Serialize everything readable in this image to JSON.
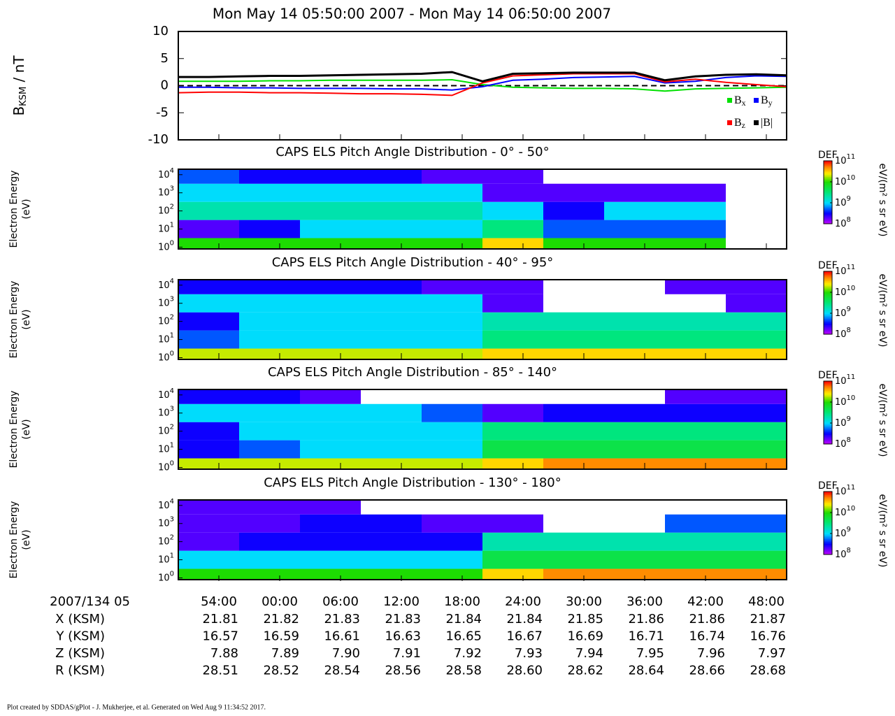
{
  "title": "Mon May 14 05:50:00 2007 - Mon May 14 06:50:00 2007",
  "chart_data": [
    {
      "type": "line",
      "ylabel": {
        "base": "B",
        "sub": "KSM",
        "unit": " / nT"
      },
      "x": [
        "05:50",
        "05:53",
        "05:56",
        "05:59",
        "06:02",
        "06:05",
        "06:08",
        "06:11",
        "06:14",
        "06:17",
        "06:20",
        "06:23",
        "06:26",
        "06:29",
        "06:32",
        "06:35",
        "06:38",
        "06:41",
        "06:44",
        "06:47",
        "06:50"
      ],
      "xlim": [
        "05:50",
        "06:50"
      ],
      "ylim": [
        -10,
        10
      ],
      "yticks": [
        -10,
        -5,
        0,
        5,
        10
      ],
      "series": [
        {
          "name": "B",
          "sub": "x",
          "color": "#00e000",
          "values": [
            0.8,
            0.8,
            0.8,
            0.9,
            0.9,
            1,
            1,
            1,
            1,
            1.1,
            0.2,
            -0.3,
            -0.4,
            -0.5,
            -0.5,
            -0.6,
            -1,
            -0.6,
            -0.5,
            -0.4,
            -0.3
          ]
        },
        {
          "name": "B",
          "sub": "y",
          "color": "#0000ff",
          "values": [
            -0.3,
            -0.3,
            -0.4,
            -0.4,
            -0.5,
            -0.5,
            -0.5,
            -0.6,
            -0.6,
            -0.8,
            -0.2,
            1,
            1.2,
            1.5,
            1.6,
            1.7,
            0.5,
            0.8,
            1.5,
            1.8,
            1.7
          ]
        },
        {
          "name": "B",
          "sub": "z",
          "color": "#ff0000",
          "values": [
            -1.3,
            -1.2,
            -1.2,
            -1.3,
            -1.3,
            -1.4,
            -1.5,
            -1.5,
            -1.6,
            -1.8,
            0.5,
            1.8,
            2,
            2.2,
            2.2,
            2.2,
            0.7,
            1.2,
            0.6,
            0.2,
            -0.2
          ]
        },
        {
          "name": "|B|",
          "sub": "",
          "color": "#000000",
          "values": [
            1.6,
            1.6,
            1.7,
            1.8,
            1.8,
            1.9,
            2,
            2.1,
            2.2,
            2.5,
            0.8,
            2.2,
            2.3,
            2.4,
            2.4,
            2.4,
            1,
            1.7,
            2,
            2.1,
            1.9
          ]
        }
      ]
    },
    {
      "type": "heatmap",
      "title": "CAPS ELS Pitch Angle Distribution - 0° - 50°",
      "ylabel": [
        "Electron Energy",
        "(eV)"
      ],
      "colorbar_title": "DEF",
      "colorbar_label": "eV/(m² s sr eV)",
      "x": [
        "05:53",
        "05:59",
        "06:05",
        "06:11",
        "06:17",
        "06:23",
        "06:29",
        "06:35",
        "06:41",
        "06:47"
      ],
      "xlim": [
        "05:50",
        "06:50"
      ],
      "y": [
        1,
        10,
        100,
        1000,
        10000
      ],
      "ylim": [
        0.8,
        20000
      ],
      "yticks": [
        {
          "value": 1,
          "label": "10",
          "exp": "0"
        },
        {
          "value": 10,
          "label": "10",
          "exp": "1"
        },
        {
          "value": 100,
          "label": "10",
          "exp": "2"
        },
        {
          "value": 1000,
          "label": "10",
          "exp": "3"
        },
        {
          "value": 10000,
          "label": "10",
          "exp": "4"
        }
      ],
      "zlim": [
        100000000,
        100000000000
      ],
      "zticks": [
        {
          "value": 100000000,
          "label": "10",
          "exp": "8"
        },
        {
          "value": 1000000000,
          "label": "10",
          "exp": "9"
        },
        {
          "value": 10000000000,
          "label": "10",
          "exp": "10"
        },
        {
          "value": 100000000000,
          "label": "10",
          "exp": "11"
        }
      ],
      "z": [
        [
          10000000000.0,
          10000000000.0,
          10000000000.0,
          10000000000.0,
          10000000000.0,
          30000000000.0,
          10000000000.0,
          10000000000.0,
          10000000000.0,
          null
        ],
        [
          200000000.0,
          300000000.0,
          1000000000.0,
          1000000000.0,
          1000000000.0,
          3000000000.0,
          500000000.0,
          500000000.0,
          500000000.0,
          null
        ],
        [
          2000000000.0,
          2000000000.0,
          2000000000.0,
          2000000000.0,
          2000000000.0,
          1000000000.0,
          300000000.0,
          1000000000.0,
          1000000000.0,
          null
        ],
        [
          1000000000.0,
          1000000000.0,
          1000000000.0,
          1000000000.0,
          1000000000.0,
          200000000.0,
          200000000.0,
          200000000.0,
          200000000.0,
          null
        ],
        [
          500000000.0,
          300000000.0,
          300000000.0,
          300000000.0,
          200000000.0,
          200000000.0,
          null,
          null,
          null,
          null
        ]
      ]
    },
    {
      "type": "heatmap",
      "title": "CAPS ELS Pitch Angle Distribution - 40° - 95°",
      "ylabel": [
        "Electron Energy",
        "(eV)"
      ],
      "colorbar_title": "DEF",
      "colorbar_label": "eV/(m² s sr eV)",
      "x": [
        "05:53",
        "05:59",
        "06:05",
        "06:11",
        "06:17",
        "06:23",
        "06:29",
        "06:35",
        "06:41",
        "06:47"
      ],
      "xlim": [
        "05:50",
        "06:50"
      ],
      "y": [
        1,
        10,
        100,
        1000,
        10000
      ],
      "ylim": [
        0.8,
        20000
      ],
      "yticks": [
        {
          "value": 1,
          "label": "10",
          "exp": "0"
        },
        {
          "value": 10,
          "label": "10",
          "exp": "1"
        },
        {
          "value": 100,
          "label": "10",
          "exp": "2"
        },
        {
          "value": 1000,
          "label": "10",
          "exp": "3"
        },
        {
          "value": 10000,
          "label": "10",
          "exp": "4"
        }
      ],
      "zlim": [
        100000000,
        100000000000
      ],
      "zticks": [
        {
          "value": 100000000,
          "label": "10",
          "exp": "8"
        },
        {
          "value": 1000000000,
          "label": "10",
          "exp": "9"
        },
        {
          "value": 10000000000,
          "label": "10",
          "exp": "10"
        },
        {
          "value": 100000000000,
          "label": "10",
          "exp": "11"
        }
      ],
      "z": [
        [
          20000000000.0,
          20000000000.0,
          20000000000.0,
          20000000000.0,
          20000000000.0,
          30000000000.0,
          30000000000.0,
          30000000000.0,
          30000000000.0,
          30000000000.0
        ],
        [
          500000000.0,
          1000000000.0,
          1000000000.0,
          1000000000.0,
          1000000000.0,
          3000000000.0,
          3000000000.0,
          3000000000.0,
          3000000000.0,
          3000000000.0
        ],
        [
          300000000.0,
          1000000000.0,
          1000000000.0,
          1000000000.0,
          1000000000.0,
          2000000000.0,
          2000000000.0,
          2000000000.0,
          2000000000.0,
          2000000000.0
        ],
        [
          1000000000.0,
          1000000000.0,
          1000000000.0,
          1000000000.0,
          1000000000.0,
          200000000.0,
          null,
          null,
          null,
          200000000.0
        ],
        [
          300000000.0,
          300000000.0,
          300000000.0,
          300000000.0,
          200000000.0,
          200000000.0,
          null,
          null,
          200000000.0,
          200000000.0
        ]
      ]
    },
    {
      "type": "heatmap",
      "title": "CAPS ELS Pitch Angle Distribution - 85° - 140°",
      "ylabel": [
        "Electron Energy",
        "(eV)"
      ],
      "colorbar_title": "DEF",
      "colorbar_label": "eV/(m² s sr eV)",
      "x": [
        "05:53",
        "05:59",
        "06:05",
        "06:11",
        "06:17",
        "06:23",
        "06:29",
        "06:35",
        "06:41",
        "06:47"
      ],
      "xlim": [
        "05:50",
        "06:50"
      ],
      "y": [
        1,
        10,
        100,
        1000,
        10000
      ],
      "ylim": [
        0.8,
        20000
      ],
      "yticks": [
        {
          "value": 1,
          "label": "10",
          "exp": "0"
        },
        {
          "value": 10,
          "label": "10",
          "exp": "1"
        },
        {
          "value": 100,
          "label": "10",
          "exp": "2"
        },
        {
          "value": 1000,
          "label": "10",
          "exp": "3"
        },
        {
          "value": 10000,
          "label": "10",
          "exp": "4"
        }
      ],
      "zlim": [
        100000000,
        100000000000
      ],
      "zticks": [
        {
          "value": 100000000,
          "label": "10",
          "exp": "8"
        },
        {
          "value": 1000000000,
          "label": "10",
          "exp": "9"
        },
        {
          "value": 10000000000,
          "label": "10",
          "exp": "10"
        },
        {
          "value": 100000000000,
          "label": "10",
          "exp": "11"
        }
      ],
      "z": [
        [
          20000000000.0,
          20000000000.0,
          20000000000.0,
          20000000000.0,
          20000000000.0,
          30000000000.0,
          50000000000.0,
          50000000000.0,
          50000000000.0,
          50000000000.0
        ],
        [
          300000000.0,
          500000000.0,
          1000000000.0,
          1000000000.0,
          1000000000.0,
          5000000000.0,
          5000000000.0,
          5000000000.0,
          5000000000.0,
          5000000000.0
        ],
        [
          300000000.0,
          1000000000.0,
          1000000000.0,
          1000000000.0,
          1000000000.0,
          3000000000.0,
          3000000000.0,
          3000000000.0,
          3000000000.0,
          3000000000.0
        ],
        [
          1000000000.0,
          1000000000.0,
          1000000000.0,
          1000000000.0,
          500000000.0,
          200000000.0,
          300000000.0,
          300000000.0,
          300000000.0,
          300000000.0
        ],
        [
          300000000.0,
          300000000.0,
          200000000.0,
          null,
          null,
          null,
          null,
          null,
          200000000.0,
          200000000.0
        ]
      ]
    },
    {
      "type": "heatmap",
      "title": "CAPS ELS Pitch Angle Distribution - 130° - 180°",
      "ylabel": [
        "Electron Energy",
        "(eV)"
      ],
      "colorbar_title": "DEF",
      "colorbar_label": "eV/(m² s sr eV)",
      "x": [
        "05:53",
        "05:59",
        "06:05",
        "06:11",
        "06:17",
        "06:23",
        "06:29",
        "06:35",
        "06:41",
        "06:47"
      ],
      "xlim": [
        "05:50",
        "06:50"
      ],
      "y": [
        1,
        10,
        100,
        1000,
        10000
      ],
      "ylim": [
        0.8,
        20000
      ],
      "yticks": [
        {
          "value": 1,
          "label": "10",
          "exp": "0"
        },
        {
          "value": 10,
          "label": "10",
          "exp": "1"
        },
        {
          "value": 100,
          "label": "10",
          "exp": "2"
        },
        {
          "value": 1000,
          "label": "10",
          "exp": "3"
        },
        {
          "value": 10000,
          "label": "10",
          "exp": "4"
        }
      ],
      "zlim": [
        100000000,
        100000000000
      ],
      "zticks": [
        {
          "value": 100000000,
          "label": "10",
          "exp": "8"
        },
        {
          "value": 1000000000,
          "label": "10",
          "exp": "9"
        },
        {
          "value": 10000000000,
          "label": "10",
          "exp": "10"
        },
        {
          "value": 100000000000,
          "label": "10",
          "exp": "11"
        }
      ],
      "z": [
        [
          10000000000.0,
          10000000000.0,
          10000000000.0,
          10000000000.0,
          10000000000.0,
          30000000000.0,
          50000000000.0,
          50000000000.0,
          50000000000.0,
          50000000000.0
        ],
        [
          1000000000.0,
          1000000000.0,
          1000000000.0,
          1000000000.0,
          1000000000.0,
          5000000000.0,
          5000000000.0,
          5000000000.0,
          5000000000.0,
          5000000000.0
        ],
        [
          200000000.0,
          300000000.0,
          300000000.0,
          300000000.0,
          300000000.0,
          2000000000.0,
          2000000000.0,
          2000000000.0,
          2000000000.0,
          2000000000.0
        ],
        [
          200000000.0,
          200000000.0,
          300000000.0,
          300000000.0,
          200000000.0,
          200000000.0,
          null,
          null,
          500000000.0,
          500000000.0
        ],
        [
          200000000.0,
          200000000.0,
          200000000.0,
          null,
          null,
          null,
          null,
          null,
          null,
          null
        ]
      ]
    }
  ],
  "time_axis": {
    "header": "2007/134 05",
    "ticks": [
      {
        "value": "05:54",
        "label": "54:00"
      },
      {
        "value": "06:00",
        "label": "00:00"
      },
      {
        "value": "06:06",
        "label": "06:00"
      },
      {
        "value": "06:12",
        "label": "12:00"
      },
      {
        "value": "06:18",
        "label": "18:00"
      },
      {
        "value": "06:24",
        "label": "24:00"
      },
      {
        "value": "06:30",
        "label": "30:00"
      },
      {
        "value": "06:36",
        "label": "36:00"
      },
      {
        "value": "06:42",
        "label": "42:00"
      },
      {
        "value": "06:48",
        "label": "48:00"
      }
    ],
    "rows": [
      {
        "label": "X (KSM)",
        "values": [
          "21.81",
          "21.82",
          "21.83",
          "21.83",
          "21.84",
          "21.84",
          "21.85",
          "21.86",
          "21.86",
          "21.87"
        ]
      },
      {
        "label": "Y (KSM)",
        "values": [
          "16.57",
          "16.59",
          "16.61",
          "16.63",
          "16.65",
          "16.67",
          "16.69",
          "16.71",
          "16.74",
          "16.76"
        ]
      },
      {
        "label": "Z (KSM)",
        "values": [
          "7.88",
          "7.89",
          "7.90",
          "7.91",
          "7.92",
          "7.93",
          "7.94",
          "7.95",
          "7.96",
          "7.97"
        ]
      },
      {
        "label": "R (KSM)",
        "values": [
          "28.51",
          "28.52",
          "28.54",
          "28.56",
          "28.58",
          "28.60",
          "28.62",
          "28.64",
          "28.66",
          "28.68"
        ]
      }
    ]
  },
  "footer": "Plot created by SDDAS/gPlot - J. Mukherjee, et al.  Generated on Wed Aug 9 11:34:52 2017."
}
